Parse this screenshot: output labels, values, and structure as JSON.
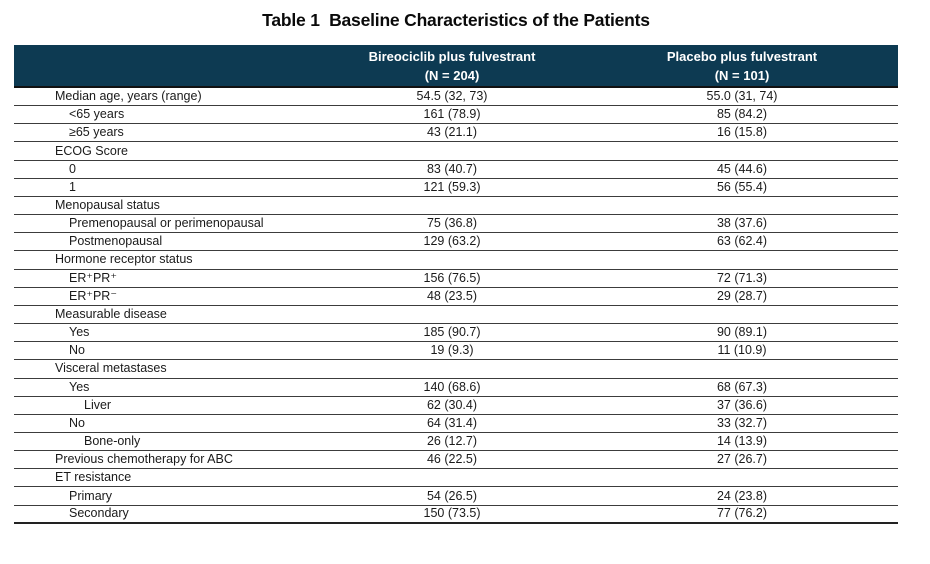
{
  "page": {
    "title": "Table 1  Baseline Characteristics of the Patients"
  },
  "table": {
    "header": {
      "bireociclib": {
        "line1": "Bireociclib plus fulvestrant",
        "line2": "(N = 204)"
      },
      "placebo": {
        "line1": "Placebo plus fulvestrant",
        "line2": "(N = 101)"
      }
    },
    "rows": [
      {
        "label": "Median age, years (range)",
        "indent": 0,
        "bireociclib": "54.5 (32, 73)",
        "placebo": "55.0 (31, 74)"
      },
      {
        "label": "<65 years",
        "indent": 1,
        "bireociclib": "161 (78.9)",
        "placebo": "85 (84.2)"
      },
      {
        "label": "≥65 years",
        "indent": 1,
        "bireociclib": "43 (21.1)",
        "placebo": "16 (15.8)"
      },
      {
        "label": "ECOG Score",
        "indent": 0,
        "bireociclib": "",
        "placebo": ""
      },
      {
        "label": "0",
        "indent": 1,
        "bireociclib": "83 (40.7)",
        "placebo": "45 (44.6)"
      },
      {
        "label": "1",
        "indent": 1,
        "bireociclib": "121 (59.3)",
        "placebo": "56 (55.4)"
      },
      {
        "label": "Menopausal status",
        "indent": 0,
        "bireociclib": "",
        "placebo": ""
      },
      {
        "label": "Premenopausal or perimenopausal",
        "indent": 1,
        "bireociclib": "75 (36.8)",
        "placebo": "38 (37.6)"
      },
      {
        "label": "Postmenopausal",
        "indent": 1,
        "bireociclib": "129 (63.2)",
        "placebo": "63 (62.4)"
      },
      {
        "label": "Hormone receptor status",
        "indent": 0,
        "bireociclib": "",
        "placebo": ""
      },
      {
        "label": "ER⁺PR⁺",
        "indent": 1,
        "bireociclib": "156 (76.5)",
        "placebo": "72 (71.3)"
      },
      {
        "label": "ER⁺PR⁻",
        "indent": 1,
        "bireociclib": "48 (23.5)",
        "placebo": "29 (28.7)"
      },
      {
        "label": "Measurable disease",
        "indent": 0,
        "bireociclib": "",
        "placebo": ""
      },
      {
        "label": "Yes",
        "indent": 1,
        "bireociclib": "185 (90.7)",
        "placebo": "90 (89.1)"
      },
      {
        "label": "No",
        "indent": 1,
        "bireociclib": "19 (9.3)",
        "placebo": "11 (10.9)"
      },
      {
        "label": "Visceral metastases",
        "indent": 0,
        "bireociclib": "",
        "placebo": ""
      },
      {
        "label": "Yes",
        "indent": 1,
        "bireociclib": "140 (68.6)",
        "placebo": "68 (67.3)"
      },
      {
        "label": "Liver",
        "indent": 2,
        "bireociclib": "62 (30.4)",
        "placebo": "37 (36.6)"
      },
      {
        "label": "No",
        "indent": 1,
        "bireociclib": "64 (31.4)",
        "placebo": "33 (32.7)"
      },
      {
        "label": "Bone-only",
        "indent": 2,
        "bireociclib": "26 (12.7)",
        "placebo": "14 (13.9)"
      },
      {
        "label": "Previous chemotherapy for ABC",
        "indent": 0,
        "bireociclib": "46 (22.5)",
        "placebo": "27 (26.7)"
      },
      {
        "label": "ET resistance",
        "indent": 0,
        "bireociclib": "",
        "placebo": ""
      },
      {
        "label": "Primary",
        "indent": 1,
        "bireociclib": "54 (26.5)",
        "placebo": "24 (23.8)"
      },
      {
        "label": "Secondary",
        "indent": 1,
        "bireociclib": "150 (73.5)",
        "placebo": "77 (76.2)"
      }
    ]
  },
  "colors": {
    "header_bg": "#0d3a52",
    "header_text": "#ffffff",
    "rule": "#3c3c3c",
    "body_text": "#1a1a1a"
  }
}
